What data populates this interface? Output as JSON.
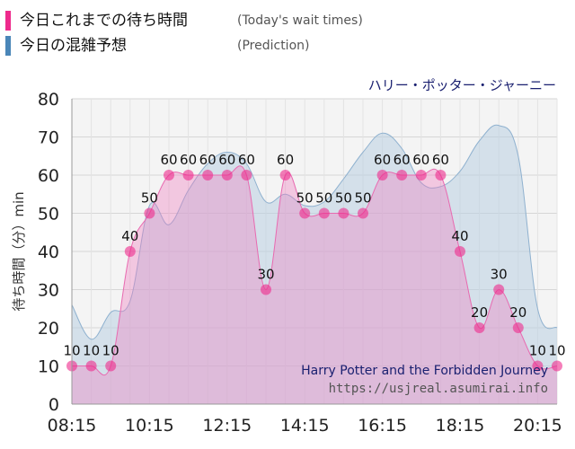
{
  "legend": {
    "actual": {
      "label": "今日これまでの待ち時間",
      "sub": "(Today's wait times)",
      "color": "#ee2a8c"
    },
    "predicted": {
      "label": "今日の混雑予想",
      "sub": "(Prediction)",
      "color": "#4a86b8"
    }
  },
  "attraction_top": "ハリー・ポッター・ジャーニー",
  "attraction_bottom": "Harry Potter and the Forbidden Journey",
  "source_url": "https://usjreal.asumirai.info",
  "chart_data": {
    "type": "area",
    "ylabel": "待ち時間（分）min",
    "ylim": [
      0,
      80
    ],
    "yticks": [
      0,
      10,
      20,
      30,
      40,
      50,
      60,
      70,
      80
    ],
    "xlim": [
      "08:15",
      "20:45"
    ],
    "xticks": [
      "08:15",
      "10:15",
      "12:15",
      "14:15",
      "16:15",
      "18:15",
      "20:15"
    ],
    "grid": true,
    "series": [
      {
        "name": "今日の混雑予想",
        "color": "#8fb1cf",
        "points": [
          [
            "08:15",
            26
          ],
          [
            "08:45",
            17
          ],
          [
            "09:15",
            24
          ],
          [
            "09:45",
            27
          ],
          [
            "10:15",
            52
          ],
          [
            "10:45",
            47
          ],
          [
            "11:15",
            56
          ],
          [
            "11:45",
            63
          ],
          [
            "12:15",
            66
          ],
          [
            "12:45",
            63
          ],
          [
            "13:15",
            53
          ],
          [
            "13:45",
            55
          ],
          [
            "14:15",
            52
          ],
          [
            "14:45",
            53
          ],
          [
            "15:15",
            59
          ],
          [
            "15:45",
            66
          ],
          [
            "16:15",
            71
          ],
          [
            "16:45",
            67
          ],
          [
            "17:15",
            58
          ],
          [
            "17:45",
            57
          ],
          [
            "18:15",
            61
          ],
          [
            "18:45",
            69
          ],
          [
            "19:15",
            73
          ],
          [
            "19:45",
            65
          ],
          [
            "20:15",
            25
          ],
          [
            "20:45",
            20
          ]
        ]
      },
      {
        "name": "今日これまでの待ち時間",
        "color": "#ee2a8c",
        "points": [
          [
            "08:15",
            10
          ],
          [
            "08:45",
            10
          ],
          [
            "09:15",
            10
          ],
          [
            "09:45",
            40
          ],
          [
            "10:15",
            50
          ],
          [
            "10:45",
            60
          ],
          [
            "11:15",
            60
          ],
          [
            "11:45",
            60
          ],
          [
            "12:15",
            60
          ],
          [
            "12:45",
            60
          ],
          [
            "13:15",
            30
          ],
          [
            "13:45",
            60
          ],
          [
            "14:15",
            50
          ],
          [
            "14:45",
            50
          ],
          [
            "15:15",
            50
          ],
          [
            "15:45",
            50
          ],
          [
            "16:15",
            60
          ],
          [
            "16:45",
            60
          ],
          [
            "17:15",
            60
          ],
          [
            "17:45",
            60
          ],
          [
            "18:15",
            40
          ],
          [
            "18:45",
            20
          ],
          [
            "19:15",
            30
          ],
          [
            "19:45",
            20
          ],
          [
            "20:15",
            10
          ],
          [
            "20:45",
            10
          ]
        ]
      }
    ]
  }
}
